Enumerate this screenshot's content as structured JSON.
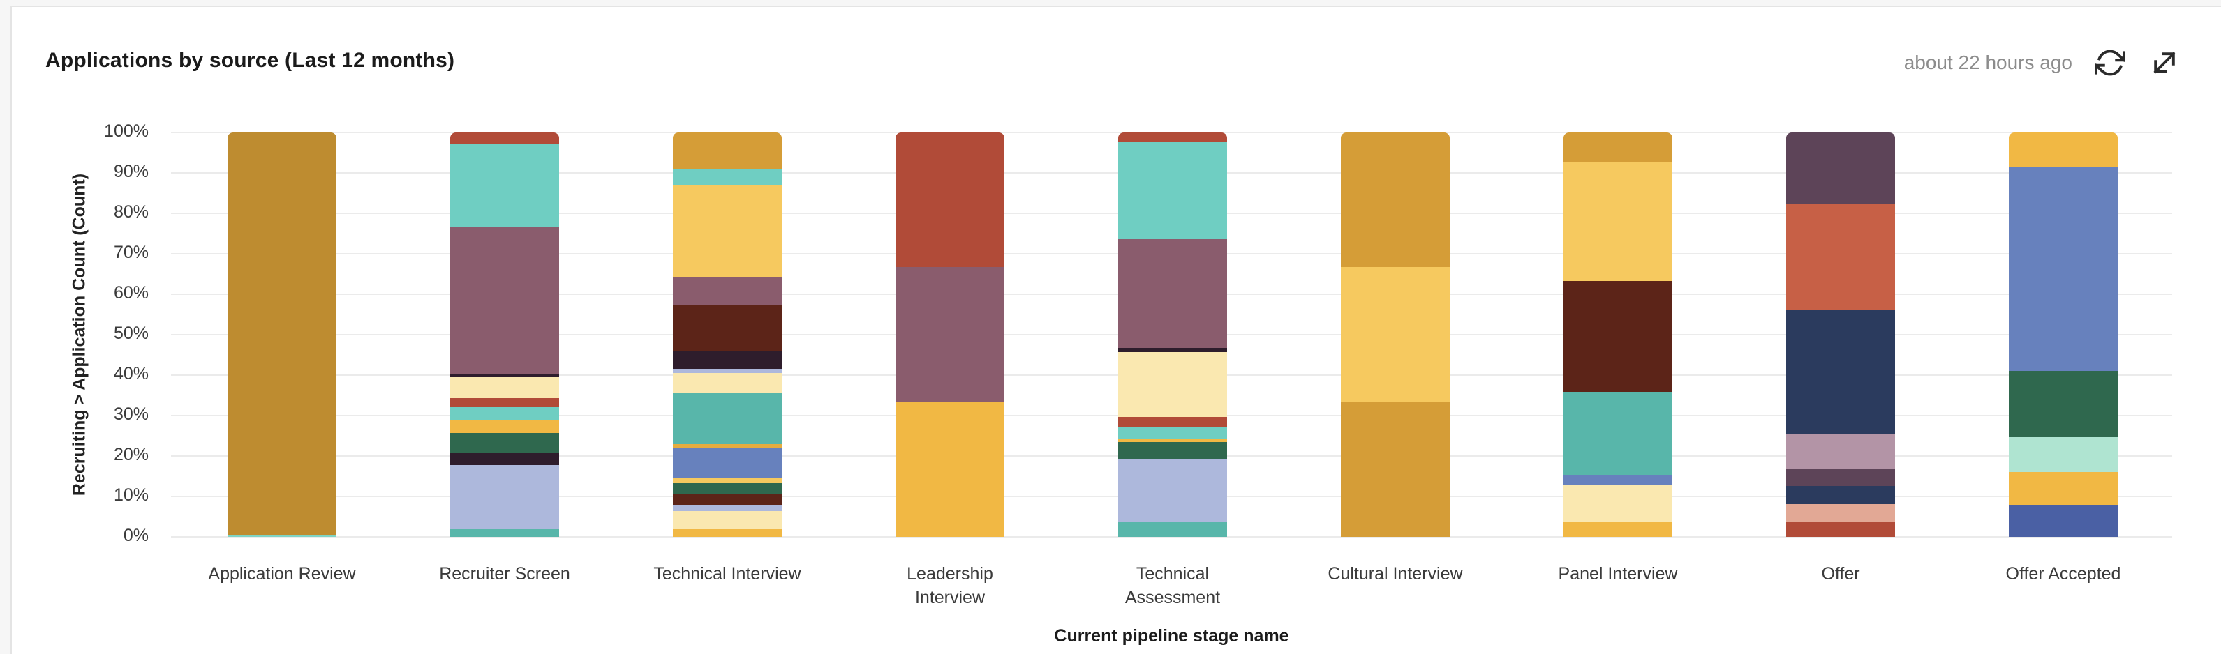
{
  "page": {
    "background": "#F6F6F6",
    "card_background": "#FFFFFF",
    "card_border_color": "#E4E4E4"
  },
  "header": {
    "title": "Applications by source (Last 12 months)",
    "last_updated": "about 22 hours ago",
    "actions": [
      {
        "label": "refresh",
        "icon": "refresh-icon"
      },
      {
        "label": "expand",
        "icon": "expand-icon"
      }
    ]
  },
  "chart_data": {
    "type": "bar",
    "variant": "stacked-percent",
    "title": "Applications by source (Last 12 months)",
    "xlabel": "Current pipeline stage name",
    "ylabel": "Recruiting > Application Count (Count)",
    "ylim": [
      0,
      100
    ],
    "ytick_labels": [
      "100%",
      "90%",
      "80%",
      "70%",
      "60%",
      "50%",
      "40%",
      "30%",
      "20%",
      "10%",
      "0%"
    ],
    "grid": true,
    "legend": "none",
    "gridline_color": "#EBEBEB",
    "categories": [
      "Application Review",
      "Recruiter Screen",
      "Technical Interview",
      "Leadership Interview",
      "Technical Assessment",
      "Cultural Interview",
      "Panel Interview",
      "Offer",
      "Offer Accepted"
    ],
    "bars": [
      {
        "label": "Application Review",
        "display_label": "Application Review",
        "segments": [
          {
            "color": "#BE8C30",
            "value": 99.5
          },
          {
            "color": "#7FD4C4",
            "value": 0.5
          }
        ]
      },
      {
        "label": "Recruiter Screen",
        "display_label": "Recruiter Screen",
        "segments": [
          {
            "color": "#B14B38",
            "value": 3.0
          },
          {
            "color": "#6FCEC2",
            "value": 20.3
          },
          {
            "color": "#8A5C6D",
            "value": 36.3
          },
          {
            "color": "#2E1D2C",
            "value": 1.0
          },
          {
            "color": "#FAE8B0",
            "value": 5.1
          },
          {
            "color": "#B14B38",
            "value": 2.3
          },
          {
            "color": "#6FCEC2",
            "value": 3.2
          },
          {
            "color": "#F1B844",
            "value": 3.1
          },
          {
            "color": "#2F684E",
            "value": 5.1
          },
          {
            "color": "#2E1D2C",
            "value": 2.9
          },
          {
            "color": "#ADB8DC",
            "value": 15.9
          },
          {
            "color": "#58B6AA",
            "value": 1.8
          }
        ]
      },
      {
        "label": "Technical Interview",
        "display_label": "Technical Interview",
        "segments": [
          {
            "color": "#D59D37",
            "value": 9.2
          },
          {
            "color": "#6FCEC2",
            "value": 3.8
          },
          {
            "color": "#F6C95F",
            "value": 22.9
          },
          {
            "color": "#8A5C6D",
            "value": 6.8
          },
          {
            "color": "#5C2418",
            "value": 11.3
          },
          {
            "color": "#2E1D2C",
            "value": 4.5
          },
          {
            "color": "#ADB8DC",
            "value": 1.0
          },
          {
            "color": "#FAE8B0",
            "value": 4.8
          },
          {
            "color": "#58B6AA",
            "value": 12.7
          },
          {
            "color": "#E5AC3E",
            "value": 1.0
          },
          {
            "color": "#6781BD",
            "value": 7.5
          },
          {
            "color": "#F6C95F",
            "value": 1.2
          },
          {
            "color": "#2F684E",
            "value": 2.6
          },
          {
            "color": "#5C2418",
            "value": 2.7
          },
          {
            "color": "#ADB8DC",
            "value": 1.7
          },
          {
            "color": "#FAE8B0",
            "value": 4.5
          },
          {
            "color": "#F1B844",
            "value": 1.8
          }
        ]
      },
      {
        "label": "Leadership Interview",
        "display_label": "Leadership\nInterview",
        "segments": [
          {
            "color": "#B14B38",
            "value": 33.3
          },
          {
            "color": "#8A5C6D",
            "value": 33.4
          },
          {
            "color": "#F1B844",
            "value": 33.3
          }
        ]
      },
      {
        "label": "Technical Assessment",
        "display_label": "Technical\nAssessment",
        "segments": [
          {
            "color": "#B14B38",
            "value": 2.4
          },
          {
            "color": "#6FCEC2",
            "value": 23.9
          },
          {
            "color": "#8A5C6D",
            "value": 27.0
          },
          {
            "color": "#2E1D2C",
            "value": 1.0
          },
          {
            "color": "#FAE8B0",
            "value": 16.1
          },
          {
            "color": "#B14B38",
            "value": 2.4
          },
          {
            "color": "#6FCEC2",
            "value": 2.9
          },
          {
            "color": "#F1B844",
            "value": 0.8
          },
          {
            "color": "#2F684E",
            "value": 4.3
          },
          {
            "color": "#ADB8DC",
            "value": 15.4
          },
          {
            "color": "#58B6AA",
            "value": 3.8
          }
        ]
      },
      {
        "label": "Cultural Interview",
        "display_label": "Cultural Interview",
        "segments": [
          {
            "color": "#D59D37",
            "value": 33.3
          },
          {
            "color": "#F6C95F",
            "value": 33.4
          },
          {
            "color": "#D59D37",
            "value": 33.3
          }
        ]
      },
      {
        "label": "Panel Interview",
        "display_label": "Panel Interview",
        "segments": [
          {
            "color": "#D59D37",
            "value": 7.2
          },
          {
            "color": "#F6C95F",
            "value": 29.5
          },
          {
            "color": "#5C2418",
            "value": 27.4
          },
          {
            "color": "#58B6AA",
            "value": 20.5
          },
          {
            "color": "#6781BD",
            "value": 2.7
          },
          {
            "color": "#FAE8B0",
            "value": 9.0
          },
          {
            "color": "#F1B844",
            "value": 3.7
          }
        ]
      },
      {
        "label": "Offer",
        "display_label": "Offer",
        "segments": [
          {
            "color": "#5D4458",
            "value": 17.5
          },
          {
            "color": "#C76046",
            "value": 26.4
          },
          {
            "color": "#2B3B5E",
            "value": 30.5
          },
          {
            "color": "#B394A6",
            "value": 8.9
          },
          {
            "color": "#5D4458",
            "value": 4.1
          },
          {
            "color": "#2B3B5E",
            "value": 4.5
          },
          {
            "color": "#E2A895",
            "value": 4.4
          },
          {
            "color": "#B14B38",
            "value": 3.7
          }
        ]
      },
      {
        "label": "Offer Accepted",
        "display_label": "Offer Accepted",
        "segments": [
          {
            "color": "#F1B844",
            "value": 8.6
          },
          {
            "color": "#6781BD",
            "value": 50.3
          },
          {
            "color": "#2F684E",
            "value": 16.4
          },
          {
            "color": "#AFE4D1",
            "value": 8.6
          },
          {
            "color": "#F1B844",
            "value": 8.2
          },
          {
            "color": "#4A60A4",
            "value": 7.9
          }
        ]
      }
    ]
  }
}
